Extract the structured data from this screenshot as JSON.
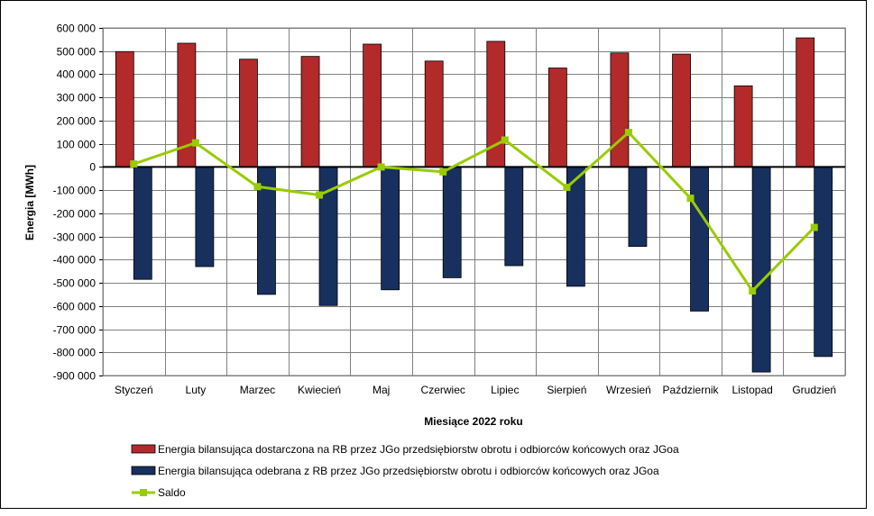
{
  "chart_data": {
    "type": "bar",
    "categories": [
      "Styczeń",
      "Luty",
      "Marzec",
      "Kwiecień",
      "Maj",
      "Czerwiec",
      "Lipiec",
      "Sierpień",
      "Wrzesień",
      "Październik",
      "Listopad",
      "Grudzień"
    ],
    "series": [
      {
        "name": "Energia bilansująca dostarczona na RB przez JGo przedsiębiorstw obrotu i odbiorców końcowych oraz JGoa",
        "type": "bar",
        "color": "#b22a2a",
        "values": [
          498000,
          534000,
          465000,
          477000,
          530000,
          457000,
          542000,
          427000,
          492000,
          487000,
          350000,
          557000
        ]
      },
      {
        "name": "Energia bilansująca odebrana z RB przez JGo przedsiębiorstw obrotu i odbiorców końcowych oraz JGoa",
        "type": "bar",
        "color": "#17305e",
        "values": [
          -485000,
          -430000,
          -550000,
          -598000,
          -530000,
          -478000,
          -426000,
          -515000,
          -343000,
          -622000,
          -885000,
          -818000
        ]
      },
      {
        "name": "Saldo",
        "type": "line",
        "color": "#99cc00",
        "values": [
          13000,
          104000,
          -85000,
          -121000,
          0,
          -21000,
          116000,
          -88000,
          149000,
          -135000,
          -535000,
          -261000
        ]
      }
    ],
    "xlabel": "Miesiące 2022  roku",
    "ylabel": "Energia [MWh]",
    "ylim": [
      -900000,
      600000
    ],
    "ytick_step": 100000,
    "yticks": [
      "600 000",
      "500 000",
      "400 000",
      "300 000",
      "200 000",
      "100 000",
      "0",
      "-100 000",
      "-200 000",
      "-300 000",
      "-400 000",
      "-500 000",
      "-600 000",
      "-700 000",
      "-800 000",
      "-900 000"
    ],
    "grid": true,
    "legend_position": "bottom"
  }
}
